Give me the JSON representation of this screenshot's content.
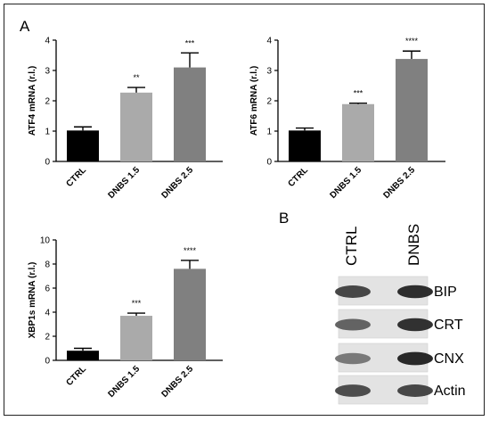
{
  "figure": {
    "panel_a": "A",
    "panel_b": "B"
  },
  "colors": {
    "CTRL": "#000000",
    "DNBS 1.5": "#aaaaaa",
    "DNBS 2.5": "#808080"
  },
  "chart_data": [
    {
      "type": "bar",
      "categories": [
        "CTRL",
        "DNBS 1.5",
        "DNBS 2.5"
      ],
      "values": [
        1.02,
        2.27,
        3.1
      ],
      "errors": [
        0.12,
        0.17,
        0.48
      ],
      "significance": [
        "",
        "**",
        "***"
      ],
      "ylabel": "ATF4 mRNA (r.l.)",
      "ylim": [
        0,
        4
      ],
      "yticks": [
        0,
        1,
        2,
        3,
        4
      ]
    },
    {
      "type": "bar",
      "categories": [
        "CTRL",
        "DNBS 1.5",
        "DNBS 2.5"
      ],
      "values": [
        1.02,
        1.89,
        3.38
      ],
      "errors": [
        0.08,
        0.03,
        0.26
      ],
      "significance": [
        "",
        "***",
        "****"
      ],
      "ylabel": "ATF6 mRNA (r.l.)",
      "ylim": [
        0,
        4
      ],
      "yticks": [
        0,
        1,
        2,
        3,
        4
      ]
    },
    {
      "type": "bar",
      "categories": [
        "CTRL",
        "DNBS 1.5",
        "DNBS 2.5"
      ],
      "values": [
        0.8,
        3.7,
        7.6
      ],
      "errors": [
        0.2,
        0.22,
        0.7
      ],
      "significance": [
        "",
        "***",
        "****"
      ],
      "ylabel": "XBP1s mRNA (r.l.)",
      "ylim": [
        0,
        10
      ],
      "yticks": [
        0,
        2,
        4,
        6,
        8,
        10
      ]
    }
  ],
  "blot": {
    "columns": [
      "CTRL",
      "DNBS"
    ],
    "rows": [
      {
        "label": "BIP",
        "intensity": [
          0.78,
          0.92
        ]
      },
      {
        "label": "CRT",
        "intensity": [
          0.62,
          0.9
        ]
      },
      {
        "label": "CNX",
        "intensity": [
          0.5,
          0.95
        ]
      },
      {
        "label": "Actin",
        "intensity": [
          0.75,
          0.78
        ]
      }
    ]
  }
}
